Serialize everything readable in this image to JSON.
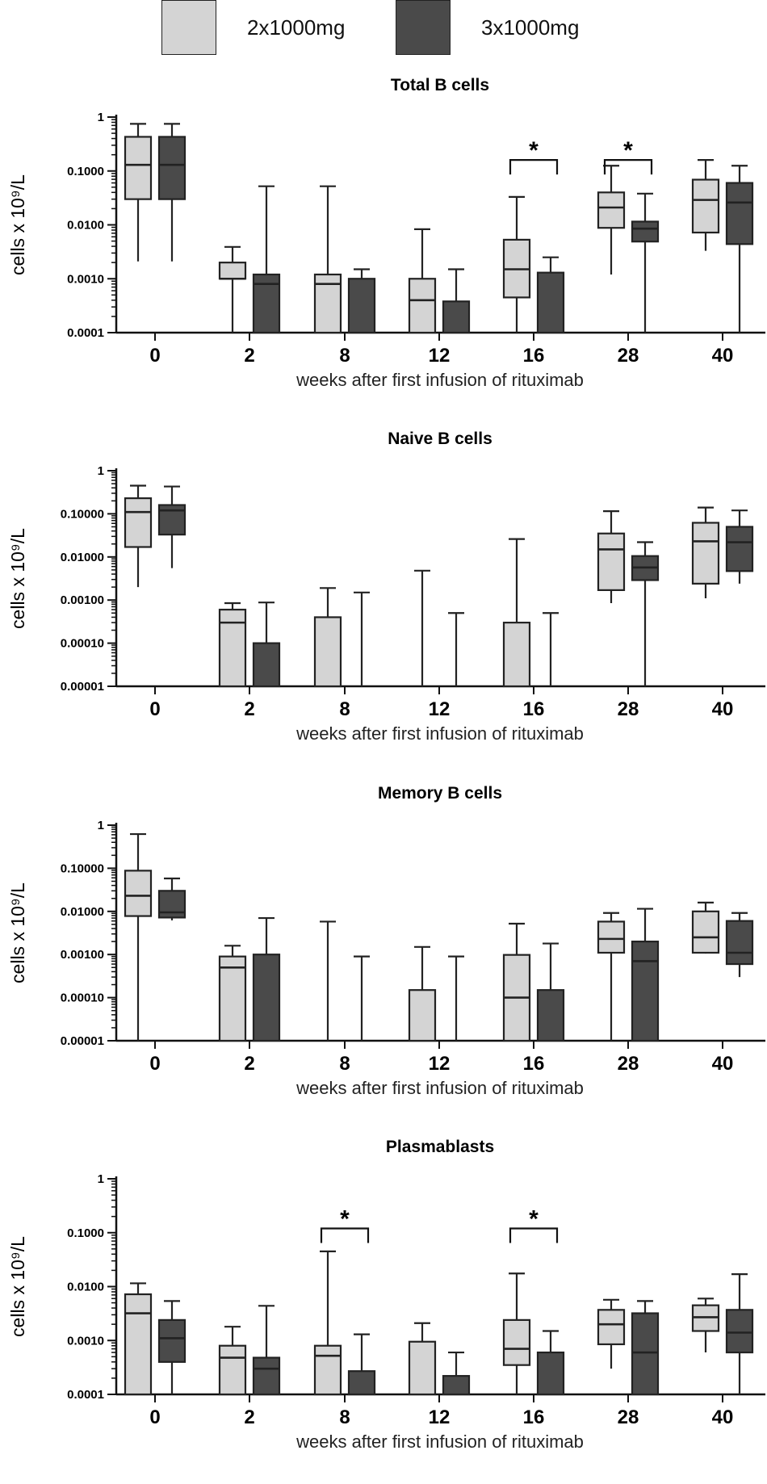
{
  "legend": [
    {
      "label": "2x1000mg",
      "color": "#d4d4d4"
    },
    {
      "label": "3x1000mg",
      "color": "#4a4a4a"
    }
  ],
  "chart_data": [
    {
      "type": "box",
      "title": "Total B cells",
      "xlabel": "weeks after first infusion of rituximab",
      "ylabel": "cells x 10⁹/L",
      "yscale": "log",
      "ylim": [
        0.0001,
        1
      ],
      "yticks": [
        "1",
        "0.1000",
        "0.0100",
        "0.0010",
        "0.0001"
      ],
      "categories": [
        "0",
        "2",
        "8",
        "12",
        "16",
        "28",
        "40"
      ],
      "series": [
        {
          "name": "2x1000mg",
          "color": "#d4d4d4",
          "boxes": [
            {
              "min": 0.0021,
              "q1": 0.03,
              "median": 0.13,
              "q3": 0.43,
              "max": 0.75
            },
            {
              "min": 0.0001,
              "q1": 0.001,
              "median": 0.001,
              "q3": 0.002,
              "max": 0.0039
            },
            {
              "min": 0.0001,
              "q1": 0.0001,
              "median": 0.0008,
              "q3": 0.0012,
              "max": 0.052
            },
            {
              "min": 0.0001,
              "q1": 0.0001,
              "median": 0.0004,
              "q3": 0.001,
              "max": 0.0083
            },
            {
              "min": 0.0001,
              "q1": 0.00045,
              "median": 0.0015,
              "q3": 0.0053,
              "max": 0.033
            },
            {
              "min": 0.0012,
              "q1": 0.0088,
              "median": 0.021,
              "q3": 0.04,
              "max": 0.125
            },
            {
              "min": 0.0033,
              "q1": 0.0072,
              "median": 0.029,
              "q3": 0.069,
              "max": 0.16
            }
          ]
        },
        {
          "name": "3x1000mg",
          "color": "#4a4a4a",
          "boxes": [
            {
              "min": 0.0021,
              "q1": 0.03,
              "median": 0.13,
              "q3": 0.43,
              "max": 0.75
            },
            {
              "min": 0.0001,
              "q1": 0.0001,
              "median": 0.0008,
              "q3": 0.0012,
              "max": 0.052
            },
            {
              "min": 0.0001,
              "q1": 0.0001,
              "median": 0.0001,
              "q3": 0.001,
              "max": 0.0015
            },
            {
              "min": 0.0001,
              "q1": 0.0001,
              "median": 0.0001,
              "q3": 0.00038,
              "max": 0.0015
            },
            {
              "min": 0.0001,
              "q1": 0.0001,
              "median": 0.0001,
              "q3": 0.0013,
              "max": 0.0025
            },
            {
              "min": 0.0001,
              "q1": 0.0049,
              "median": 0.0085,
              "q3": 0.0115,
              "max": 0.038
            },
            {
              "min": 0.0001,
              "q1": 0.0044,
              "median": 0.026,
              "q3": 0.06,
              "max": 0.125
            }
          ]
        }
      ],
      "significance": [
        {
          "category": "16",
          "label": "*",
          "y": 0.16
        },
        {
          "category": "28",
          "label": "*",
          "y": 0.16
        }
      ]
    },
    {
      "type": "box",
      "title": "Naive B cells",
      "xlabel": "weeks after first infusion of rituximab",
      "ylabel": "cells x 10⁹/L",
      "yscale": "log",
      "ylim": [
        1e-05,
        1
      ],
      "yticks": [
        "1",
        "0.10000",
        "0.01000",
        "0.00100",
        "0.00010",
        "0.00001"
      ],
      "categories": [
        "0",
        "2",
        "8",
        "12",
        "16",
        "28",
        "40"
      ],
      "series": [
        {
          "name": "2x1000mg",
          "color": "#d4d4d4",
          "boxes": [
            {
              "min": 0.002,
              "q1": 0.017,
              "median": 0.11,
              "q3": 0.23,
              "max": 0.45
            },
            {
              "min": 1e-05,
              "q1": 1e-05,
              "median": 0.0003,
              "q3": 0.0006,
              "max": 0.00085
            },
            {
              "min": 1e-05,
              "q1": 1e-05,
              "median": 1e-05,
              "q3": 0.0004,
              "max": 0.0019
            },
            {
              "min": 1e-05,
              "q1": 1e-05,
              "median": 1e-05,
              "q3": 1e-05,
              "max": 0.0048
            },
            {
              "min": 1e-05,
              "q1": 1e-05,
              "median": 1e-05,
              "q3": 0.0003,
              "max": 0.026
            },
            {
              "min": 0.00085,
              "q1": 0.0017,
              "median": 0.015,
              "q3": 0.035,
              "max": 0.115
            },
            {
              "min": 0.0011,
              "q1": 0.0024,
              "median": 0.023,
              "q3": 0.062,
              "max": 0.14
            }
          ]
        },
        {
          "name": "3x1000mg",
          "color": "#4a4a4a",
          "boxes": [
            {
              "min": 0.0055,
              "q1": 0.033,
              "median": 0.12,
              "q3": 0.16,
              "max": 0.43
            },
            {
              "min": 1e-05,
              "q1": 1e-05,
              "median": 1e-05,
              "q3": 0.0001,
              "max": 0.00088
            },
            {
              "min": 1e-05,
              "q1": 1e-05,
              "median": 1e-05,
              "q3": 1e-05,
              "max": 0.0015
            },
            {
              "min": 1e-05,
              "q1": 1e-05,
              "median": 1e-05,
              "q3": 1e-05,
              "max": 0.0005
            },
            {
              "min": 1e-05,
              "q1": 1e-05,
              "median": 1e-05,
              "q3": 1e-05,
              "max": 0.0005
            },
            {
              "min": 1e-05,
              "q1": 0.0029,
              "median": 0.0057,
              "q3": 0.0105,
              "max": 0.022
            },
            {
              "min": 0.0024,
              "q1": 0.0047,
              "median": 0.022,
              "q3": 0.05,
              "max": 0.12
            }
          ]
        }
      ],
      "significance": []
    },
    {
      "type": "box",
      "title": "Memory B cells",
      "xlabel": "weeks after first infusion of rituximab",
      "ylabel": "cells x 10⁹/L",
      "yscale": "log",
      "ylim": [
        1e-05,
        1
      ],
      "yticks": [
        "1",
        "0.10000",
        "0.01000",
        "0.00100",
        "0.00010",
        "0.00001"
      ],
      "categories": [
        "0",
        "2",
        "8",
        "12",
        "16",
        "28",
        "40"
      ],
      "series": [
        {
          "name": "2x1000mg",
          "color": "#d4d4d4",
          "boxes": [
            {
              "min": 1e-05,
              "q1": 0.0078,
              "median": 0.023,
              "q3": 0.088,
              "max": 0.62
            },
            {
              "min": 1e-05,
              "q1": 1e-05,
              "median": 0.0005,
              "q3": 0.0009,
              "max": 0.0016
            },
            {
              "min": 1e-05,
              "q1": 1e-05,
              "median": 1e-05,
              "q3": 1e-05,
              "max": 0.0058
            },
            {
              "min": 1e-05,
              "q1": 1e-05,
              "median": 1e-05,
              "q3": 0.00015,
              "max": 0.0015
            },
            {
              "min": 1e-05,
              "q1": 1e-05,
              "median": 0.0001,
              "q3": 0.00098,
              "max": 0.0052
            },
            {
              "min": 1e-05,
              "q1": 0.0011,
              "median": 0.0023,
              "q3": 0.0058,
              "max": 0.0092
            },
            {
              "min": 0.00105,
              "q1": 0.0011,
              "median": 0.0025,
              "q3": 0.01,
              "max": 0.016
            }
          ]
        },
        {
          "name": "3x1000mg",
          "color": "#4a4a4a",
          "boxes": [
            {
              "min": 0.0062,
              "q1": 0.0072,
              "median": 0.0095,
              "q3": 0.03,
              "max": 0.058
            },
            {
              "min": 1e-05,
              "q1": 1e-05,
              "median": 1e-05,
              "q3": 0.001,
              "max": 0.007
            },
            {
              "min": 1e-05,
              "q1": 1e-05,
              "median": 1e-05,
              "q3": 1e-05,
              "max": 0.0009
            },
            {
              "min": 1e-05,
              "q1": 1e-05,
              "median": 1e-05,
              "q3": 1e-05,
              "max": 0.0009
            },
            {
              "min": 1e-05,
              "q1": 1e-05,
              "median": 1e-05,
              "q3": 0.00015,
              "max": 0.0018
            },
            {
              "min": 1e-05,
              "q1": 1e-05,
              "median": 0.0007,
              "q3": 0.002,
              "max": 0.0115
            },
            {
              "min": 0.0003,
              "q1": 0.0006,
              "median": 0.0011,
              "q3": 0.006,
              "max": 0.0092
            }
          ]
        }
      ],
      "significance": []
    },
    {
      "type": "box",
      "title": "Plasmablasts",
      "xlabel": "weeks after first infusion of rituximab",
      "ylabel": "cells x 10⁹/L",
      "yscale": "log",
      "ylim": [
        0.0001,
        1
      ],
      "yticks": [
        "1",
        "0.1000",
        "0.0100",
        "0.0010",
        "0.0001"
      ],
      "categories": [
        "0",
        "2",
        "8",
        "12",
        "16",
        "28",
        "40"
      ],
      "series": [
        {
          "name": "2x1000mg",
          "color": "#d4d4d4",
          "boxes": [
            {
              "min": 0.0001,
              "q1": 0.0001,
              "median": 0.0032,
              "q3": 0.0072,
              "max": 0.0115
            },
            {
              "min": 0.0001,
              "q1": 0.0001,
              "median": 0.00048,
              "q3": 0.0008,
              "max": 0.0018
            },
            {
              "min": 0.0001,
              "q1": 0.0001,
              "median": 0.00052,
              "q3": 0.0008,
              "max": 0.045
            },
            {
              "min": 0.0001,
              "q1": 0.0001,
              "median": 0.0001,
              "q3": 0.00095,
              "max": 0.0021
            },
            {
              "min": 0.0001,
              "q1": 0.00035,
              "median": 0.0007,
              "q3": 0.0024,
              "max": 0.0175
            },
            {
              "min": 0.0003,
              "q1": 0.00085,
              "median": 0.002,
              "q3": 0.0037,
              "max": 0.0057
            },
            {
              "min": 0.0006,
              "q1": 0.0015,
              "median": 0.0027,
              "q3": 0.0045,
              "max": 0.006
            }
          ]
        },
        {
          "name": "3x1000mg",
          "color": "#4a4a4a",
          "boxes": [
            {
              "min": 0.0001,
              "q1": 0.0004,
              "median": 0.0011,
              "q3": 0.0024,
              "max": 0.0054
            },
            {
              "min": 0.0001,
              "q1": 0.0001,
              "median": 0.0003,
              "q3": 0.00048,
              "max": 0.0044
            },
            {
              "min": 0.0001,
              "q1": 0.0001,
              "median": 0.0001,
              "q3": 0.00027,
              "max": 0.0013
            },
            {
              "min": 0.0001,
              "q1": 0.0001,
              "median": 0.0001,
              "q3": 0.00022,
              "max": 0.0006
            },
            {
              "min": 0.0001,
              "q1": 0.0001,
              "median": 0.0001,
              "q3": 0.0006,
              "max": 0.0015
            },
            {
              "min": 0.0001,
              "q1": 0.0001,
              "median": 0.0006,
              "q3": 0.0032,
              "max": 0.0054
            },
            {
              "min": 0.0001,
              "q1": 0.0006,
              "median": 0.0014,
              "q3": 0.0037,
              "max": 0.017
            }
          ]
        }
      ],
      "significance": [
        {
          "category": "8",
          "label": "*",
          "y": 0.12
        },
        {
          "category": "16",
          "label": "*",
          "y": 0.12
        }
      ]
    }
  ]
}
